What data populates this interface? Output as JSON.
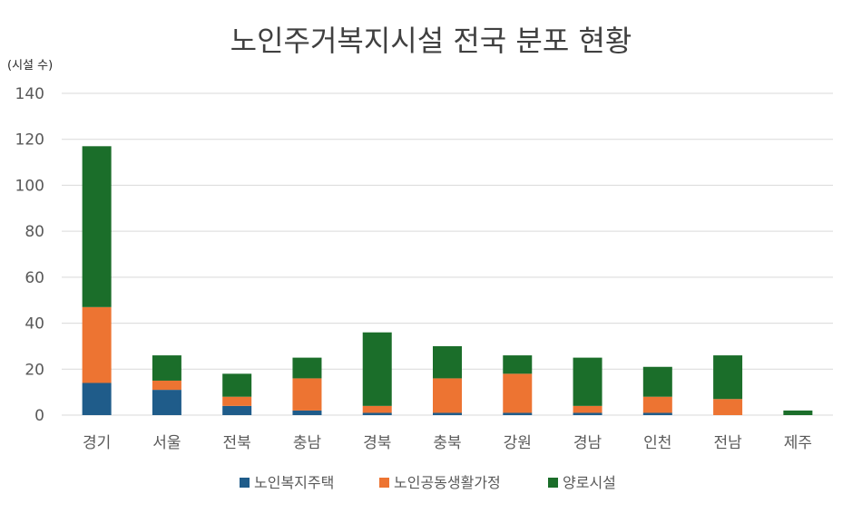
{
  "chart_data": {
    "type": "bar",
    "stacked": true,
    "title": "노인주거복지시설 전국 분포 현황",
    "ylabel": "(시설 수)",
    "xlabel": "",
    "ylim": [
      0,
      140
    ],
    "yticks": [
      0,
      20,
      40,
      60,
      80,
      100,
      120,
      140
    ],
    "grid": true,
    "legend": "bottom",
    "categories": [
      "경기",
      "서울",
      "전북",
      "충남",
      "경북",
      "충북",
      "강원",
      "경남",
      "인천",
      "전남",
      "제주"
    ],
    "series": [
      {
        "name": "노인복지주택",
        "color": "#1f5c8a",
        "values": [
          14,
          11,
          4,
          2,
          1,
          1,
          1,
          1,
          1,
          0,
          0
        ]
      },
      {
        "name": "노인공동생활가정",
        "color": "#ed7432",
        "values": [
          33,
          4,
          4,
          14,
          3,
          15,
          17,
          3,
          7,
          7,
          0
        ]
      },
      {
        "name": "양로시설",
        "color": "#1b6e2a",
        "values": [
          70,
          11,
          10,
          9,
          32,
          14,
          8,
          21,
          13,
          19,
          2
        ]
      }
    ]
  }
}
